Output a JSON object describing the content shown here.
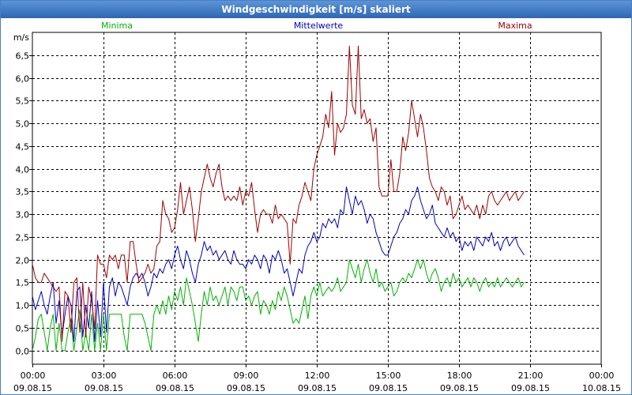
{
  "window": {
    "title": "Windgeschwindigkeit [m/s] skaliert"
  },
  "colors": {
    "minima": "#00b400",
    "mittel": "#0000c0",
    "maxima": "#a00000",
    "grid": "#000000"
  },
  "chart_data": {
    "type": "line",
    "title": "Windgeschwindigkeit [m/s] skaliert",
    "ylabel": "m/s",
    "ylim": [
      -0.3,
      7.0
    ],
    "xlim_hours": [
      0,
      24
    ],
    "y_ticks": [
      "0,0",
      "0,5",
      "1,0",
      "1,5",
      "2,0",
      "2,5",
      "3,0",
      "3,5",
      "4,0",
      "4,5",
      "5,0",
      "5,5",
      "6,0",
      "6,5"
    ],
    "y_tick_values": [
      0,
      0.5,
      1,
      1.5,
      2,
      2.5,
      3,
      3.5,
      4,
      4.5,
      5,
      5.5,
      6,
      6.5
    ],
    "x_ticks": [
      {
        "hour": 0,
        "time": "00:00",
        "date": "09.08.15"
      },
      {
        "hour": 3,
        "time": "03:00",
        "date": "09.08.15"
      },
      {
        "hour": 6,
        "time": "06:00",
        "date": "09.08.15"
      },
      {
        "hour": 9,
        "time": "09:00",
        "date": "09.08.15"
      },
      {
        "hour": 12,
        "time": "12:00",
        "date": "09.08.15"
      },
      {
        "hour": 15,
        "time": "15:00",
        "date": "09.08.15"
      },
      {
        "hour": 18,
        "time": "18:00",
        "date": "09.08.15"
      },
      {
        "hour": 21,
        "time": "21:00",
        "date": "09.08.15"
      },
      {
        "hour": 24,
        "time": "00:00",
        "date": "10.08.15"
      }
    ],
    "legend": [
      "Minima",
      "Mittelwerte",
      "Maxima"
    ],
    "series": [
      {
        "name": "Minima",
        "step_hours": 0.125,
        "values": [
          0.0,
          0.3,
          0.7,
          0.8,
          0.4,
          0.0,
          0.5,
          0.8,
          0.0,
          0.6,
          0.0,
          0.0,
          0.4,
          0.7,
          0.0,
          0.5,
          0.9,
          0.0,
          0.4,
          0.0,
          0.8,
          0.0,
          0.6,
          0.0,
          0.8,
          0.0,
          0.8,
          0.8,
          0.8,
          0.8,
          0.8,
          0.3,
          0.0,
          0.8,
          0.8,
          0.8,
          0.8,
          0.8,
          0.6,
          0.3,
          0.0,
          0.8,
          1.0,
          0.8,
          1.1,
          0.8,
          1.2,
          0.9,
          1.3,
          1.1,
          1.4,
          1.0,
          1.6,
          1.3,
          1.0,
          0.6,
          0.2,
          0.8,
          1.3,
          1.0,
          1.4,
          1.1,
          1.2,
          1.0,
          1.2,
          1.4,
          1.0,
          1.4,
          1.3,
          1.1,
          1.4,
          1.4,
          1.1,
          1.2,
          1.0,
          1.2,
          1.3,
          0.8,
          1.1,
          1.0,
          0.8,
          1.1,
          0.9,
          1.3,
          1.1,
          1.4,
          1.2,
          0.9,
          0.6,
          0.7,
          0.6,
          0.9,
          1.2,
          0.7,
          1.2,
          1.4,
          1.2,
          1.5,
          1.2,
          1.3,
          1.4,
          1.3,
          1.4,
          1.6,
          1.3,
          1.4,
          1.5,
          2.0,
          1.8,
          1.6,
          1.9,
          1.5,
          1.8,
          2.0,
          1.7,
          1.5,
          1.8,
          1.4,
          1.5,
          1.3,
          1.4,
          1.5,
          1.2,
          1.3,
          1.5,
          1.6,
          1.5,
          1.7,
          1.6,
          1.8,
          2.0,
          1.8,
          2.0,
          1.7,
          1.5,
          1.7,
          1.8,
          1.6,
          1.3,
          1.5,
          1.6,
          1.4,
          1.7,
          1.5,
          1.6,
          1.4,
          1.5,
          1.6,
          1.4,
          1.6,
          1.5,
          1.3,
          1.5,
          1.6,
          1.4,
          1.5,
          1.4,
          1.6,
          1.4,
          1.5,
          1.6,
          1.5,
          1.4,
          1.5,
          1.6,
          1.4,
          1.5
        ]
      },
      {
        "name": "Mittelwerte",
        "step_hours": 0.125,
        "values": [
          1.2,
          0.9,
          1.1,
          1.3,
          1.0,
          0.8,
          1.2,
          1.5,
          0.6,
          1.1,
          0.3,
          0.8,
          1.2,
          1.0,
          0.2,
          1.3,
          1.4,
          0.3,
          1.0,
          0.5,
          1.3,
          0.2,
          1.1,
          0.3,
          1.5,
          0.4,
          1.4,
          1.6,
          1.2,
          1.5,
          1.4,
          1.2,
          1.0,
          1.4,
          1.6,
          1.7,
          1.6,
          1.7,
          1.5,
          1.2,
          1.4,
          1.7,
          1.6,
          1.8,
          1.7,
          1.9,
          2.0,
          1.8,
          2.1,
          2.3,
          2.0,
          1.8,
          2.2,
          2.0,
          1.7,
          1.5,
          1.9,
          2.1,
          2.4,
          2.2,
          2.3,
          2.1,
          2.2,
          2.0,
          2.1,
          2.2,
          2.0,
          1.9,
          2.2,
          2.0,
          1.9,
          1.9,
          1.8,
          2.0,
          1.9,
          2.1,
          2.0,
          1.8,
          2.1,
          2.0,
          1.7,
          2.1,
          2.0,
          2.2,
          2.0,
          1.7,
          1.8,
          1.5,
          1.2,
          1.5,
          1.8,
          1.7,
          2.1,
          2.3,
          2.4,
          2.6,
          2.4,
          2.5,
          2.8,
          2.7,
          2.9,
          2.8,
          2.9,
          2.7,
          3.1,
          3.0,
          3.6,
          3.3,
          3.0,
          3.4,
          3.2,
          3.3,
          3.1,
          2.8,
          3.0,
          2.9,
          2.6,
          2.4,
          2.2,
          2.1,
          2.1,
          2.3,
          2.5,
          2.6,
          2.8,
          2.9,
          3.1,
          3.0,
          3.3,
          3.4,
          3.6,
          3.3,
          3.1,
          2.9,
          3.0,
          3.2,
          2.8,
          2.7,
          2.6,
          2.5,
          2.7,
          2.5,
          2.6,
          2.4,
          2.5,
          2.2,
          2.4,
          2.3,
          2.4,
          2.2,
          2.5,
          2.4,
          2.3,
          2.5,
          2.4,
          2.6,
          2.3,
          2.4,
          2.2,
          2.4,
          2.5,
          2.3,
          2.4,
          2.5,
          2.3,
          2.2,
          2.1
        ]
      },
      {
        "name": "Maxima",
        "step_hours": 0.125,
        "values": [
          1.9,
          1.6,
          1.5,
          1.5,
          1.7,
          1.6,
          1.5,
          1.4,
          1.3,
          1.4,
          0.2,
          1.3,
          1.2,
          0.4,
          1.5,
          1.6,
          0.4,
          1.5,
          0.3,
          1.4,
          1.1,
          0.5,
          2.1,
          1.9,
          1.9,
          1.6,
          2.1,
          2.0,
          2.1,
          1.8,
          2.1,
          2.1,
          1.5,
          2.4,
          2.4,
          1.9,
          1.5,
          1.6,
          1.7,
          1.9,
          1.7,
          1.8,
          2.3,
          2.4,
          3.3,
          3.0,
          2.9,
          2.6,
          2.7,
          3.1,
          3.7,
          3.0,
          3.3,
          3.6,
          3.1,
          2.4,
          2.9,
          3.5,
          3.8,
          4.1,
          3.8,
          3.6,
          3.9,
          4.1,
          3.6,
          3.3,
          3.4,
          3.3,
          3.4,
          3.3,
          3.6,
          3.2,
          3.5,
          3.4,
          3.7,
          3.1,
          2.6,
          3.0,
          3.1,
          3.0,
          3.0,
          2.8,
          3.2,
          2.9,
          3.0,
          2.9,
          2.8,
          1.9,
          2.9,
          2.8,
          3.2,
          3.4,
          3.7,
          3.5,
          3.3,
          4.0,
          4.3,
          4.5,
          4.7,
          5.2,
          4.9,
          5.7,
          4.3,
          5.0,
          4.8,
          4.9,
          5.2,
          6.7,
          5.4,
          5.2,
          6.7,
          5.1,
          5.3,
          5.0,
          5.1,
          4.6,
          4.9,
          3.6,
          3.4,
          3.4,
          3.4,
          4.2,
          3.5,
          3.5,
          3.9,
          4.7,
          4.4,
          4.8,
          5.5,
          5.1,
          4.7,
          5.2,
          4.9,
          4.4,
          3.8,
          3.6,
          3.5,
          3.3,
          3.6,
          3.5,
          3.2,
          3.4,
          2.9,
          3.0,
          3.2,
          3.4,
          3.1,
          3.2,
          3.1,
          3.0,
          3.2,
          2.9,
          3.2,
          3.0,
          3.4,
          3.5,
          3.3,
          3.2,
          3.3,
          3.4,
          3.5,
          3.3,
          3.4,
          3.5,
          3.3,
          3.4,
          3.5
        ]
      }
    ]
  }
}
